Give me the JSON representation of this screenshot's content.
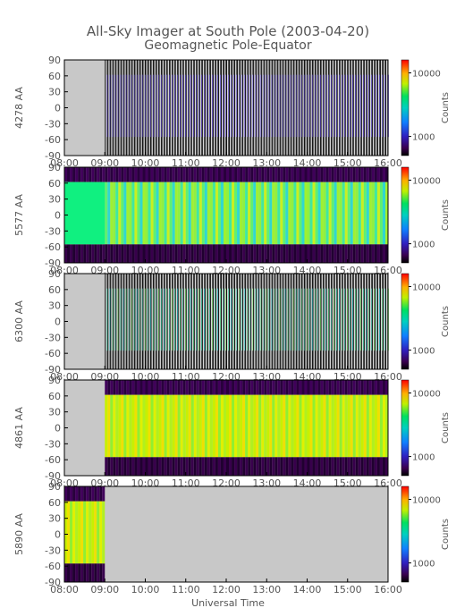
{
  "title": "All-Sky Imager at South Pole (2003-04-20)",
  "subtitle": "Geomagnetic Pole-Equator",
  "xlabel": "Universal Time",
  "x_ticks": [
    "08:00",
    "09:00",
    "10:00",
    "11:00",
    "12:00",
    "13:00",
    "14:00",
    "15:00",
    "16:00"
  ],
  "y_ticks": [
    90,
    60,
    30,
    0,
    -30,
    -60,
    -90
  ],
  "colorbar": {
    "label": "Counts",
    "ticks": [
      "10000",
      "1000"
    ]
  },
  "chart_data": [
    {
      "type": "heatmap",
      "ylabel": "4278 AA",
      "xlim": [
        "08:00",
        "16:00"
      ],
      "ylim": [
        -90,
        90
      ],
      "data_start": "09:00",
      "data_end": "16:00",
      "band": "purple-blue",
      "observed_lat_range": [
        -55,
        62
      ],
      "colorbar_range": [
        500,
        16000
      ]
    },
    {
      "type": "heatmap",
      "ylabel": "5577 AA",
      "xlim": [
        "08:00",
        "16:00"
      ],
      "ylim": [
        -90,
        90
      ],
      "data_start": "08:00",
      "data_end": "16:00",
      "band": "green-cyan-yellow",
      "observed_lat_range": [
        -55,
        62
      ],
      "colorbar_range": [
        500,
        16000
      ]
    },
    {
      "type": "heatmap",
      "ylabel": "6300 AA",
      "xlim": [
        "08:00",
        "16:00"
      ],
      "ylim": [
        -90,
        90
      ],
      "data_start": "09:00",
      "data_end": "16:00",
      "band": "cyan-green",
      "observed_lat_range": [
        -55,
        62
      ],
      "colorbar_range": [
        500,
        16000
      ]
    },
    {
      "type": "heatmap",
      "ylabel": "4861 AA",
      "xlim": [
        "08:00",
        "16:00"
      ],
      "ylim": [
        -90,
        90
      ],
      "data_start": "09:00",
      "data_end": "16:00",
      "band": "yellow-green",
      "observed_lat_range": [
        -55,
        62
      ],
      "colorbar_range": [
        500,
        16000
      ]
    },
    {
      "type": "heatmap",
      "ylabel": "5890 AA",
      "xlim": [
        "08:00",
        "16:00"
      ],
      "ylim": [
        -90,
        90
      ],
      "data_start": "08:00",
      "data_end": "09:00",
      "band": "yellow-green",
      "observed_lat_range": [
        -55,
        62
      ],
      "colorbar_range": [
        500,
        16000
      ]
    }
  ]
}
